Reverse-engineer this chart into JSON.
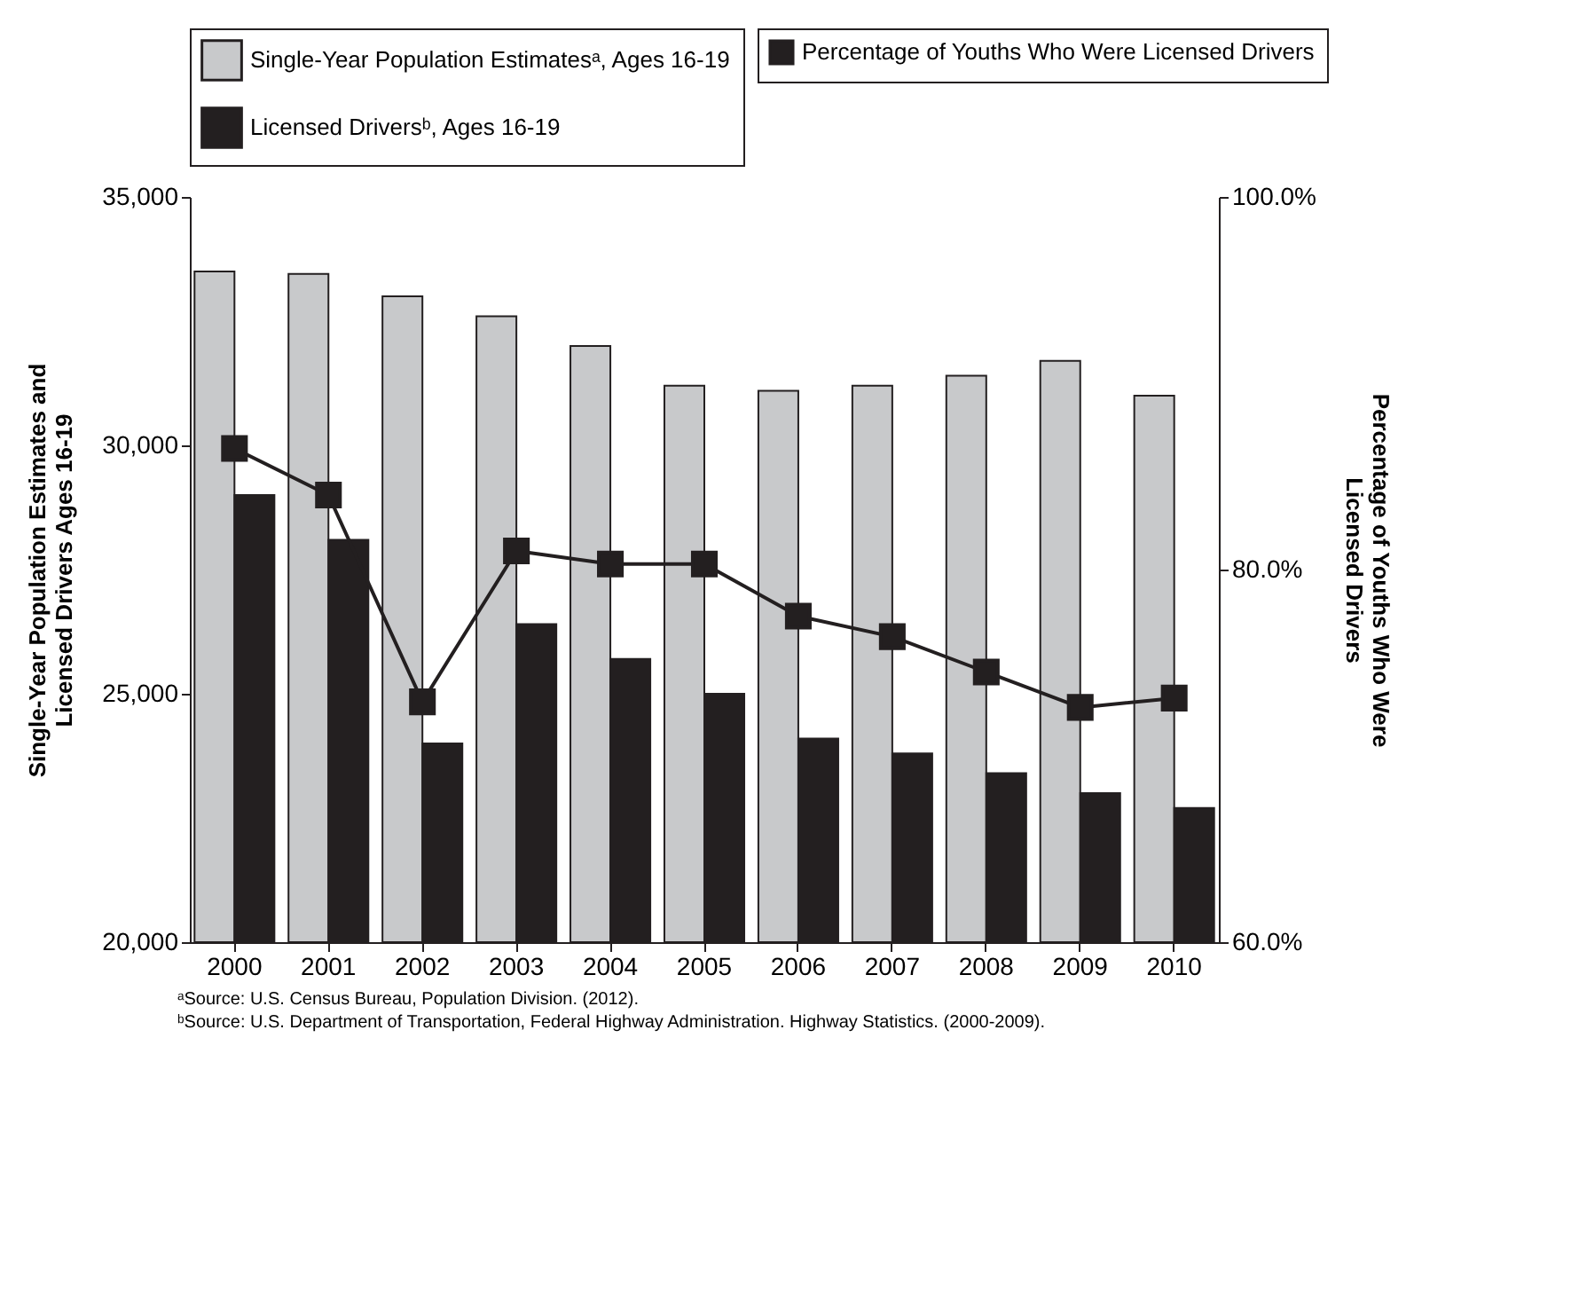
{
  "chart_data": {
    "type": "bar",
    "categories": [
      "2000",
      "2001",
      "2002",
      "2003",
      "2004",
      "2005",
      "2006",
      "2007",
      "2008",
      "2009",
      "2010"
    ],
    "ylabel": "Single-Year Population Estimates and Licensed Drivers Ages 16-19",
    "y2label": "Percentage of Youths Who Were Licensed Drivers",
    "series": [
      {
        "name": "Single-Year Population Estimatesᵃ, Ages 16-19",
        "color": "#c8c9cb",
        "values": [
          33500,
          33450,
          33000,
          32600,
          32000,
          31200,
          31100,
          31200,
          31400,
          31700,
          31000
        ]
      },
      {
        "name": "Licensed Driversᵇ, Ages 16-19",
        "color": "#231f20",
        "values": [
          29000,
          28100,
          24000,
          26400,
          25700,
          25000,
          24100,
          23800,
          23400,
          23000,
          22700
        ]
      },
      {
        "name": "Percentage of Youths Who Were Licensed Drivers",
        "type": "line",
        "axis": "y2",
        "color": "#231f20",
        "marker": "square",
        "values": [
          86.5,
          84.0,
          72.9,
          81.0,
          80.3,
          80.3,
          77.5,
          76.4,
          74.5,
          72.6,
          73.1
        ]
      }
    ],
    "ylim": [
      20000,
      35000
    ],
    "yticks": [
      {
        "value": 20000,
        "label": "20,000"
      },
      {
        "value": 25000,
        "label": "25,000"
      },
      {
        "value": 30000,
        "label": "30,000"
      },
      {
        "value": 35000,
        "label": "35,000"
      }
    ],
    "y2lim": [
      60,
      100
    ],
    "y2ticks": [
      {
        "value": 60,
        "label": "60.0%"
      },
      {
        "value": 80,
        "label": "80.0%"
      },
      {
        "value": 100,
        "label": "100.0%"
      }
    ],
    "legend": "top right",
    "grid": false,
    "annotations": [
      "ᵃSource: U.S. Census Bureau, Population Division. (2012).",
      "ᵇSource: U.S. Department of Transportation, Federal Highway Administration. Highway Statistics. (2000-2009)."
    ]
  }
}
